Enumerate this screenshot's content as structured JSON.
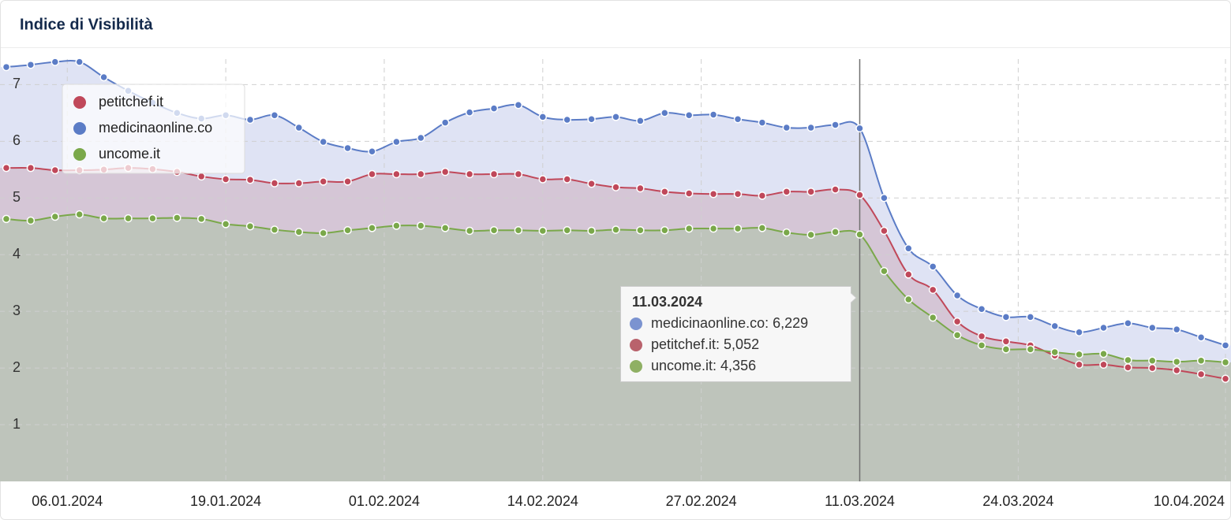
{
  "chart_data": {
    "type": "line",
    "title": "Indice di Visibilità",
    "x": [
      "01.01.2024",
      "03.01.2024",
      "05.01.2024",
      "07.01.2024",
      "09.01.2024",
      "11.01.2024",
      "13.01.2024",
      "15.01.2024",
      "17.01.2024",
      "19.01.2024",
      "21.01.2024",
      "23.01.2024",
      "25.01.2024",
      "27.01.2024",
      "29.01.2024",
      "31.01.2024",
      "02.02.2024",
      "04.02.2024",
      "06.02.2024",
      "08.02.2024",
      "10.02.2024",
      "12.02.2024",
      "14.02.2024",
      "16.02.2024",
      "18.02.2024",
      "20.02.2024",
      "22.02.2024",
      "24.02.2024",
      "26.02.2024",
      "28.02.2024",
      "01.03.2024",
      "03.03.2024",
      "05.03.2024",
      "07.03.2024",
      "09.03.2024",
      "11.03.2024",
      "13.03.2024",
      "15.03.2024",
      "17.03.2024",
      "19.03.2024",
      "21.03.2024",
      "23.03.2024",
      "25.03.2024",
      "27.03.2024",
      "29.03.2024",
      "31.03.2024",
      "02.04.2024",
      "04.04.2024",
      "06.04.2024",
      "08.04.2024",
      "10.04.2024"
    ],
    "xlim": [
      "01.01.2024",
      "10.04.2024"
    ],
    "xticks": [
      "06.01.2024",
      "19.01.2024",
      "01.02.2024",
      "14.02.2024",
      "27.02.2024",
      "11.03.2024",
      "24.03.2024",
      "10.04.2024"
    ],
    "ylim": [
      0,
      7.45
    ],
    "yticks": [
      1,
      2,
      3,
      4,
      5,
      6,
      7
    ],
    "grid": true,
    "legend": "top-left",
    "series": [
      {
        "name": "petitchef.it",
        "color": "#c0485a",
        "area_color": "#d5c6d6",
        "values": [
          5.53,
          5.53,
          5.49,
          5.49,
          5.5,
          5.53,
          5.51,
          5.46,
          5.38,
          5.33,
          5.32,
          5.26,
          5.26,
          5.29,
          5.29,
          5.42,
          5.42,
          5.42,
          5.46,
          5.42,
          5.42,
          5.42,
          5.33,
          5.33,
          5.25,
          5.19,
          5.17,
          5.11,
          5.08,
          5.07,
          5.07,
          5.04,
          5.11,
          5.11,
          5.15,
          5.052,
          4.42,
          3.65,
          3.38,
          2.82,
          2.56,
          2.47,
          2.4,
          2.22,
          2.06,
          2.06,
          2.01,
          2,
          1.96,
          1.89,
          1.81
        ]
      },
      {
        "name": "medicinaonline.co",
        "color": "#5b7cc6",
        "area_color": "#dfe3f4",
        "values": [
          7.31,
          7.35,
          7.4,
          7.4,
          7.13,
          6.89,
          6.68,
          6.5,
          6.4,
          6.46,
          6.38,
          6.46,
          6.24,
          5.99,
          5.88,
          5.82,
          5.99,
          6.06,
          6.33,
          6.51,
          6.58,
          6.64,
          6.43,
          6.38,
          6.39,
          6.43,
          6.36,
          6.5,
          6.46,
          6.47,
          6.39,
          6.33,
          6.24,
          6.24,
          6.29,
          6.229,
          5,
          4.11,
          3.79,
          3.28,
          3.04,
          2.9,
          2.9,
          2.74,
          2.63,
          2.71,
          2.79,
          2.71,
          2.68,
          2.54,
          2.4
        ]
      },
      {
        "name": "uncome.it",
        "color": "#7aa84a",
        "area_color": "#bec4bb",
        "values": [
          4.63,
          4.6,
          4.67,
          4.71,
          4.64,
          4.64,
          4.64,
          4.65,
          4.63,
          4.54,
          4.5,
          4.44,
          4.4,
          4.38,
          4.43,
          4.47,
          4.51,
          4.51,
          4.47,
          4.42,
          4.43,
          4.43,
          4.42,
          4.43,
          4.42,
          4.44,
          4.43,
          4.43,
          4.46,
          4.46,
          4.46,
          4.47,
          4.39,
          4.35,
          4.4,
          4.356,
          3.71,
          3.21,
          2.89,
          2.58,
          2.4,
          2.33,
          2.33,
          2.28,
          2.24,
          2.25,
          2.14,
          2.13,
          2.11,
          2.13,
          2.1
        ]
      }
    ],
    "tooltip": {
      "title": "11.03.2024",
      "entries": [
        {
          "text": "medicinaonline.co: 6,229",
          "color": "#7b93d0"
        },
        {
          "text": "petitchef.it: 5,052",
          "color": "#b9626c"
        },
        {
          "text": "uncome.it: 4,356",
          "color": "#8fb064"
        }
      ]
    }
  }
}
